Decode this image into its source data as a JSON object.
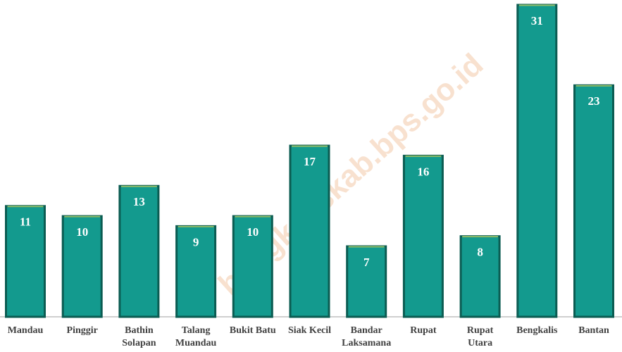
{
  "chart_data": {
    "type": "bar",
    "categories": [
      "Mandau",
      "Pinggir",
      "Bathin\nSolapan",
      "Talang\nMuandau",
      "Bukit Batu",
      "Siak Kecil",
      "Bandar\nLaksamana",
      "Rupat",
      "Rupat\nUtara",
      "Bengkalis",
      "Bantan"
    ],
    "values": [
      11,
      10,
      13,
      9,
      10,
      17,
      7,
      16,
      8,
      31,
      23
    ],
    "color": "#139a8e",
    "ylim": [
      0,
      31
    ],
    "watermark": "bengkaliskab.bps.go.id"
  }
}
